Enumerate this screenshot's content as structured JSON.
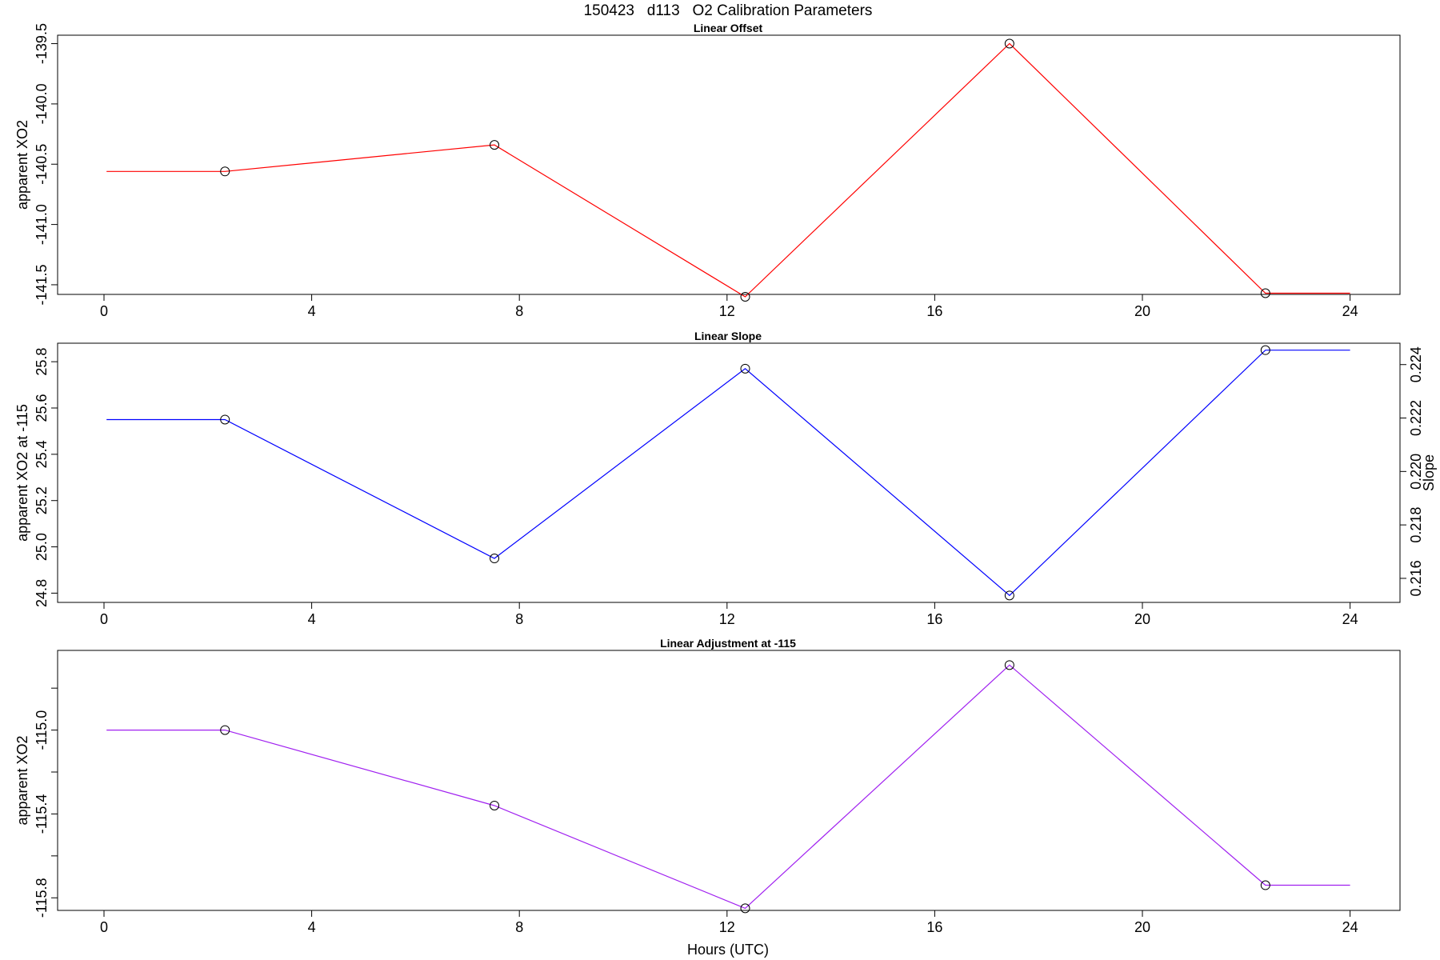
{
  "figure": {
    "title": "150423   d113   O2 Calibration Parameters",
    "xlabel": "Hours (UTC)"
  },
  "chart_data": [
    {
      "type": "line",
      "title": "Linear Offset",
      "xlabel": "",
      "ylabel": "apparent XO2",
      "xlim": [
        0,
        24
      ],
      "x_ticks": [
        0,
        4,
        8,
        12,
        16,
        20,
        24
      ],
      "y_ticks": [
        -141.5,
        -141.0,
        -140.5,
        -140.0,
        -139.5
      ],
      "ylim": [
        -141.58,
        -139.43
      ],
      "line_color": "#ff0000",
      "series": [
        {
          "x": [
            0.05,
            2.33,
            7.52,
            12.35,
            17.44,
            22.37,
            24.0
          ],
          "y": [
            -140.56,
            -140.56,
            -140.34,
            -141.6,
            -139.5,
            -141.57,
            -141.57
          ],
          "markers": [
            false,
            true,
            true,
            true,
            true,
            true,
            false
          ]
        }
      ]
    },
    {
      "type": "line",
      "title": "Linear Slope",
      "xlabel": "",
      "ylabel": "apparent XO2 at -115",
      "y2label": "Slope",
      "xlim": [
        0,
        24
      ],
      "x_ticks": [
        0,
        4,
        8,
        12,
        16,
        20,
        24
      ],
      "y_ticks": [
        24.8,
        25.0,
        25.2,
        25.4,
        25.6,
        25.8
      ],
      "y_tick_labels": [
        "24.8",
        "25.0",
        "25.2",
        "25.4",
        "25.6",
        "25.8"
      ],
      "ylim": [
        24.76,
        25.88
      ],
      "y2_ticks": [
        0.216,
        0.218,
        0.22,
        0.222,
        0.224
      ],
      "y2_tick_labels": [
        "0.216",
        "0.218",
        "0.220",
        "0.222",
        "0.224"
      ],
      "y2lim": [
        0.2151,
        0.2248
      ],
      "line_color": "#0000ff",
      "series": [
        {
          "x": [
            0.05,
            2.33,
            7.52,
            12.35,
            17.44,
            22.37,
            24.0
          ],
          "y": [
            25.55,
            25.55,
            24.95,
            25.77,
            24.79,
            25.85,
            25.85
          ],
          "markers": [
            false,
            true,
            true,
            true,
            true,
            true,
            false
          ]
        }
      ]
    },
    {
      "type": "line",
      "title": "Linear Adjustment at -115",
      "xlabel": "Hours (UTC)",
      "ylabel": "apparent XO2",
      "xlim": [
        0,
        24
      ],
      "x_ticks": [
        0,
        4,
        8,
        12,
        16,
        20,
        24
      ],
      "y_ticks": [
        -115.8,
        -115.6,
        -115.4,
        -115.2,
        -115.0,
        -114.8
      ],
      "y_tick_labels": [
        "-115.8",
        "",
        "-115.4",
        "",
        "-115.0",
        ""
      ],
      "ylim": [
        -115.86,
        -114.62
      ],
      "line_color": "#a020f0",
      "series": [
        {
          "x": [
            0.05,
            2.33,
            7.52,
            12.35,
            17.44,
            22.37,
            24.0
          ],
          "y": [
            -115.0,
            -115.0,
            -115.36,
            -115.85,
            -114.69,
            -115.74,
            -115.74
          ],
          "markers": [
            false,
            true,
            true,
            true,
            true,
            true,
            false
          ]
        }
      ]
    }
  ]
}
